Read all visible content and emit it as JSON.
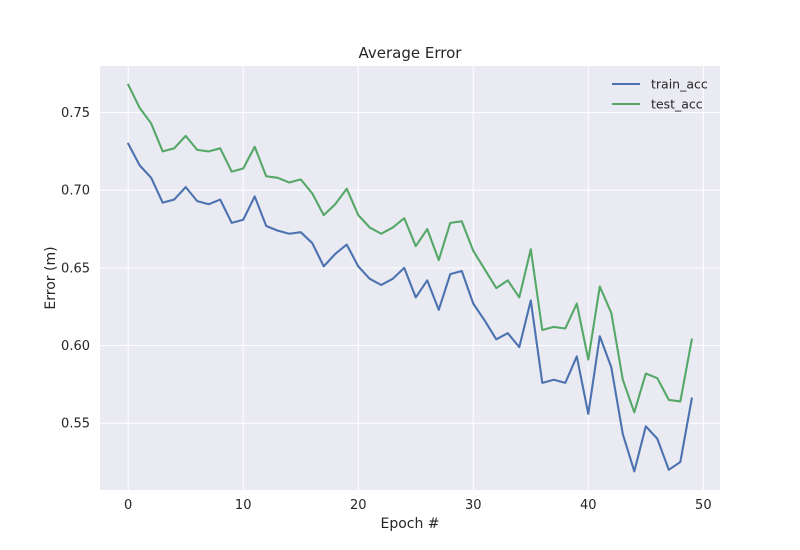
{
  "chart_data": {
    "type": "line",
    "title": "Average Error",
    "xlabel": "Epoch #",
    "ylabel": "Error (m)",
    "xlim": [
      -2.45,
      51.45
    ],
    "ylim": [
      0.507,
      0.78
    ],
    "xticks": [
      0,
      10,
      20,
      30,
      40,
      50
    ],
    "yticks": [
      0.55,
      0.6,
      0.65,
      0.7,
      0.75
    ],
    "ytick_labels": [
      "0.55",
      "0.60",
      "0.65",
      "0.70",
      "0.75"
    ],
    "grid": true,
    "legend_position": "top-right",
    "x": [
      0,
      1,
      2,
      3,
      4,
      5,
      6,
      7,
      8,
      9,
      10,
      11,
      12,
      13,
      14,
      15,
      16,
      17,
      18,
      19,
      20,
      21,
      22,
      23,
      24,
      25,
      26,
      27,
      28,
      29,
      30,
      31,
      32,
      33,
      34,
      35,
      36,
      37,
      38,
      39,
      40,
      41,
      42,
      43,
      44,
      45,
      46,
      47,
      48,
      49
    ],
    "series": [
      {
        "name": "train_acc",
        "color": "#4c72b0",
        "values": [
          0.73,
          0.716,
          0.708,
          0.692,
          0.694,
          0.702,
          0.693,
          0.691,
          0.694,
          0.679,
          0.681,
          0.696,
          0.677,
          0.674,
          0.672,
          0.673,
          0.666,
          0.651,
          0.659,
          0.665,
          0.651,
          0.643,
          0.639,
          0.643,
          0.65,
          0.631,
          0.642,
          0.623,
          0.646,
          0.648,
          0.627,
          0.616,
          0.604,
          0.608,
          0.599,
          0.629,
          0.576,
          0.578,
          0.576,
          0.593,
          0.556,
          0.606,
          0.586,
          0.543,
          0.519,
          0.548,
          0.54,
          0.52,
          0.525,
          0.566
        ]
      },
      {
        "name": "test_acc",
        "color": "#55a868",
        "values": [
          0.768,
          0.753,
          0.743,
          0.725,
          0.727,
          0.735,
          0.726,
          0.725,
          0.727,
          0.712,
          0.714,
          0.728,
          0.709,
          0.708,
          0.705,
          0.707,
          0.698,
          0.684,
          0.691,
          0.701,
          0.684,
          0.676,
          0.672,
          0.676,
          0.682,
          0.664,
          0.675,
          0.655,
          0.679,
          0.68,
          0.661,
          0.649,
          0.637,
          0.642,
          0.631,
          0.662,
          0.61,
          0.612,
          0.611,
          0.627,
          0.591,
          0.638,
          0.621,
          0.578,
          0.557,
          0.582,
          0.579,
          0.565,
          0.564,
          0.604
        ]
      }
    ]
  }
}
